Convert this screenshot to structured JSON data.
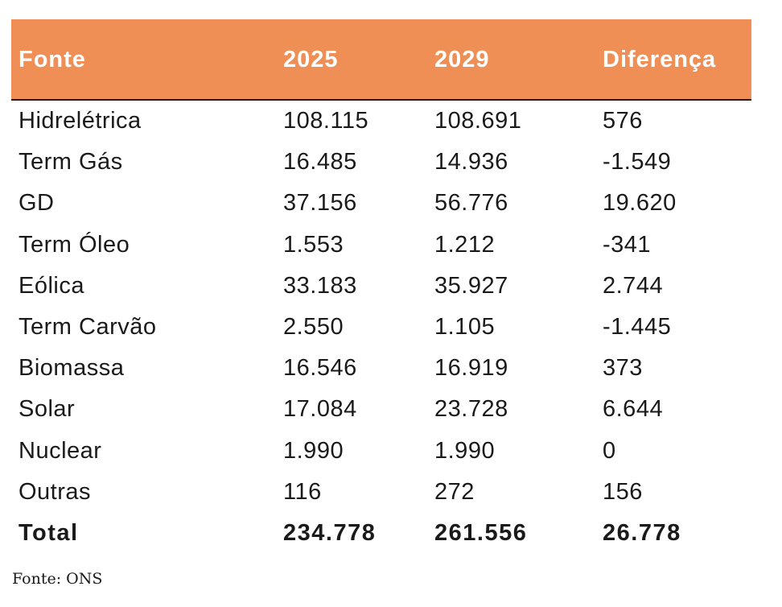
{
  "table": {
    "headers": [
      "Fonte",
      "2025",
      "2029",
      "Diferença"
    ],
    "rows": [
      [
        "Hidrelétrica",
        "108.115",
        "108.691",
        "576"
      ],
      [
        "Term Gás",
        "16.485",
        "14.936",
        "-1.549"
      ],
      [
        "GD",
        "37.156",
        "56.776",
        "19.620"
      ],
      [
        "Term Óleo",
        "1.553",
        "1.212",
        "-341"
      ],
      [
        "Eólica",
        "33.183",
        "35.927",
        "2.744"
      ],
      [
        "Term Carvão",
        "2.550",
        "1.105",
        "-1.445"
      ],
      [
        "Biomassa",
        "16.546",
        "16.919",
        "373"
      ],
      [
        "Solar",
        "17.084",
        "23.728",
        "6.644"
      ],
      [
        "Nuclear",
        "1.990",
        "1.990",
        "0"
      ],
      [
        "Outras",
        "116",
        "272",
        "156"
      ]
    ],
    "total": [
      "Total",
      "234.778",
      "261.556",
      "26.778"
    ]
  },
  "source_note": "Fonte: ONS",
  "colors": {
    "header_background": "#ef8f55",
    "header_text": "#ffffff",
    "body_text": "#1a1a1a"
  }
}
